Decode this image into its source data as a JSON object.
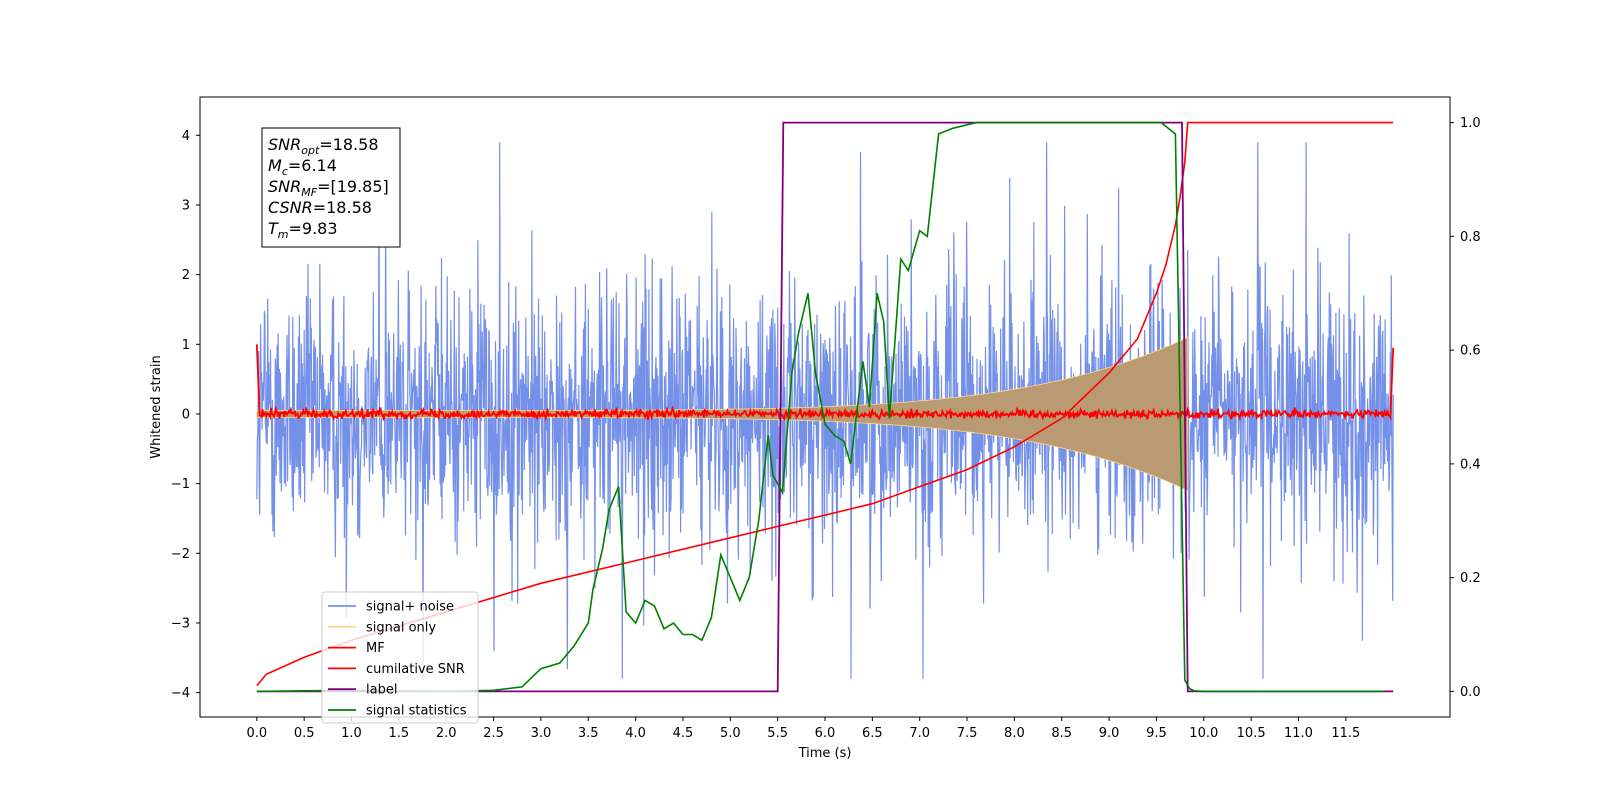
{
  "chart_data": {
    "type": "line",
    "title": "",
    "xlabel": "Time (s)",
    "ylabel": "Whitened strain",
    "y2label": "",
    "xlim": [
      -0.6,
      12.6
    ],
    "ylim": [
      -4.35,
      4.55
    ],
    "y2lim": [
      -0.045,
      1.045
    ],
    "x_ticks": [
      0.0,
      0.5,
      1.0,
      1.5,
      2.0,
      2.5,
      3.0,
      3.5,
      4.0,
      4.5,
      5.0,
      5.5,
      6.0,
      6.5,
      7.0,
      7.5,
      8.0,
      8.5,
      9.0,
      9.5,
      10.0,
      10.5,
      11.0,
      11.5
    ],
    "x_tick_labels": [
      "0.0",
      "0.5",
      "1.0",
      "1.5",
      "2.0",
      "2.5",
      "3.0",
      "3.5",
      "4.0",
      "4.5",
      "5.0",
      "5.5",
      "6.0",
      "6.5",
      "7.0",
      "7.5",
      "8.0",
      "8.5",
      "9.0",
      "9.5",
      "10.0",
      "10.5",
      "11.0",
      "11.5"
    ],
    "y_ticks": [
      -4,
      -3,
      -2,
      -1,
      0,
      1,
      2,
      3,
      4
    ],
    "y_tick_labels": [
      "−4",
      "−3",
      "−2",
      "−1",
      "0",
      "1",
      "2",
      "3",
      "4"
    ],
    "y2_ticks": [
      0.0,
      0.2,
      0.4,
      0.6,
      0.8,
      1.0
    ],
    "y2_tick_labels": [
      "0.0",
      "0.2",
      "0.4",
      "0.6",
      "0.8",
      "1.0"
    ],
    "grid": false,
    "legend_position": "lower-left",
    "series": [
      {
        "name": "signal+ noise",
        "color": "#7590e8",
        "axis": "left",
        "kind": "noise",
        "x_range": [
          0.0,
          12.0
        ],
        "envelope_range": [
          -2.8,
          2.4
        ],
        "peak_range": [
          -3.8,
          3.9
        ]
      },
      {
        "name": "signal only",
        "color": "#ffd58f",
        "axis": "left",
        "kind": "chirp",
        "x_range": [
          0.0,
          9.83
        ],
        "amplitude_start": 0.05,
        "amplitude_end": 1.1
      },
      {
        "name": "MF",
        "color": "#ff0000",
        "axis": "left",
        "kind": "noise",
        "x_range": [
          0.0,
          12.0
        ],
        "envelope_range": [
          -0.08,
          0.08
        ],
        "edge_values": [
          1.0,
          0.95
        ]
      },
      {
        "name": "cumilative SNR",
        "color": "#ff0000",
        "axis": "right",
        "x": [
          0.0,
          0.1,
          0.5,
          1.0,
          2.0,
          3.0,
          4.0,
          5.0,
          5.5,
          6.0,
          6.5,
          7.0,
          7.5,
          8.0,
          8.5,
          9.0,
          9.3,
          9.5,
          9.6,
          9.7,
          9.75,
          9.8,
          9.83,
          12.0
        ],
        "y": [
          0.01,
          0.03,
          0.06,
          0.09,
          0.14,
          0.19,
          0.23,
          0.27,
          0.29,
          0.31,
          0.33,
          0.36,
          0.39,
          0.43,
          0.48,
          0.56,
          0.62,
          0.7,
          0.75,
          0.82,
          0.87,
          0.93,
          1.0,
          1.0
        ]
      },
      {
        "name": "label",
        "color": "#800080",
        "axis": "right",
        "x": [
          0.0,
          5.5,
          5.56,
          9.77,
          9.83,
          12.0
        ],
        "y": [
          0.0,
          0.0,
          1.0,
          1.0,
          0.0,
          0.0
        ]
      },
      {
        "name": "signal statistics",
        "color": "#008000",
        "axis": "right",
        "x": [
          0.0,
          0.5,
          1.0,
          1.5,
          2.0,
          2.5,
          2.8,
          3.0,
          3.2,
          3.35,
          3.5,
          3.55,
          3.65,
          3.72,
          3.82,
          3.9,
          4.0,
          4.1,
          4.2,
          4.3,
          4.4,
          4.5,
          4.6,
          4.7,
          4.8,
          4.9,
          5.0,
          5.1,
          5.2,
          5.3,
          5.4,
          5.45,
          5.55,
          5.65,
          5.72,
          5.82,
          5.9,
          6.0,
          6.1,
          6.2,
          6.27,
          6.4,
          6.47,
          6.55,
          6.62,
          6.68,
          6.8,
          6.88,
          7.0,
          7.08,
          7.2,
          7.35,
          7.6,
          8.0,
          9.0,
          9.55,
          9.7,
          9.75,
          9.8,
          9.85,
          9.9,
          10.0,
          11.0,
          11.9
        ],
        "y": [
          0.0,
          0.001,
          0.002,
          0.001,
          0.0,
          0.002,
          0.008,
          0.04,
          0.05,
          0.08,
          0.12,
          0.18,
          0.25,
          0.32,
          0.36,
          0.14,
          0.12,
          0.16,
          0.15,
          0.11,
          0.12,
          0.1,
          0.1,
          0.09,
          0.13,
          0.24,
          0.2,
          0.16,
          0.2,
          0.3,
          0.45,
          0.38,
          0.35,
          0.56,
          0.63,
          0.7,
          0.56,
          0.47,
          0.45,
          0.44,
          0.4,
          0.58,
          0.5,
          0.7,
          0.65,
          0.48,
          0.76,
          0.74,
          0.81,
          0.8,
          0.98,
          0.99,
          1.0,
          1.0,
          1.0,
          1.0,
          0.98,
          0.5,
          0.02,
          0.005,
          0.001,
          0.0,
          0.0,
          0.0
        ]
      }
    ]
  },
  "annotation": {
    "lines": [
      {
        "symbol": "SNR",
        "sub": "opt",
        "value": "=18.58"
      },
      {
        "symbol": "M",
        "sub": "c",
        "value": "=6.14"
      },
      {
        "symbol": "SNR",
        "sub": "MF",
        "value": "=[19.85]"
      },
      {
        "symbol": "CSNR",
        "sub": "",
        "value": "=18.58"
      },
      {
        "symbol": "T",
        "sub": "m",
        "value": "=9.83"
      }
    ]
  }
}
